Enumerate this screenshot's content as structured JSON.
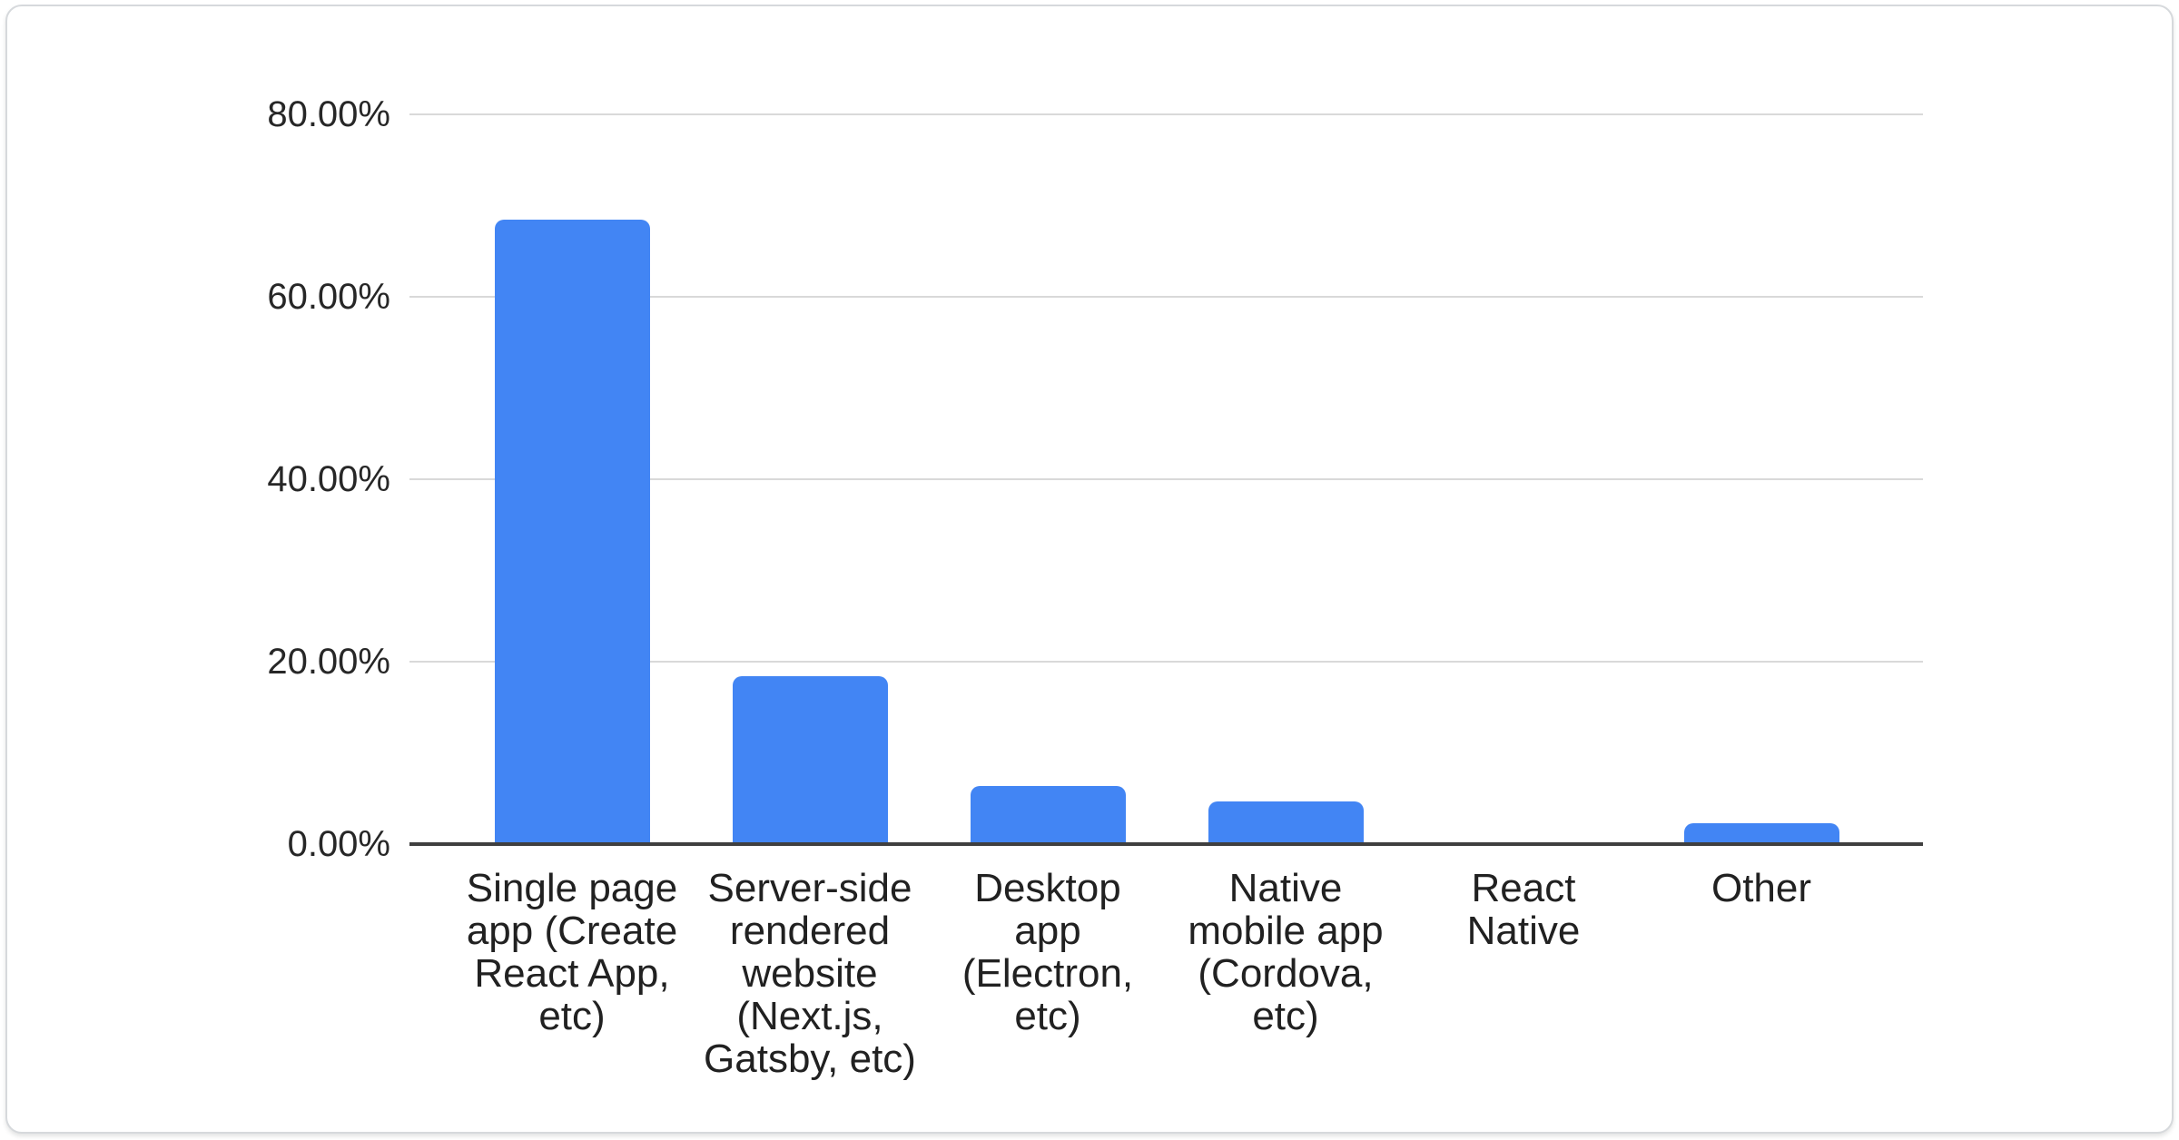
{
  "chart_data": {
    "type": "bar",
    "title": "",
    "xlabel": "",
    "ylabel": "",
    "unit": "%",
    "ylim": [
      0,
      80
    ],
    "grid": true,
    "legend": "none",
    "bar_color": "#4285f4",
    "gridline_color": "#d9d9d9",
    "axis_line_color": "#3f3f3f",
    "text_color": "#272727",
    "card_border_color": "#d6d9dc",
    "yticks": [
      {
        "label": "80.00%",
        "value": 80
      },
      {
        "label": "60.00%",
        "value": 60
      },
      {
        "label": "40.00%",
        "value": 40
      },
      {
        "label": "20.00%",
        "value": 20
      },
      {
        "label": "0.00%",
        "value": 0
      }
    ],
    "categories": [
      {
        "name": "Single page app (Create React App, etc)",
        "display": "Single page\napp (Create\nReact App,\netc)",
        "value": 68.5
      },
      {
        "name": "Server-side rendered website (Next.js, Gatsby, etc)",
        "display": "Server-side\nrendered\nwebsite\n(Next.js,\nGatsby, etc)",
        "value": 18.4
      },
      {
        "name": "Desktop app (Electron, etc)",
        "display": "Desktop\napp\n(Electron,\netc)",
        "value": 6.4
      },
      {
        "name": "Native mobile app (Cordova, etc)",
        "display": "Native\nmobile app\n(Cordova,\netc)",
        "value": 4.7
      },
      {
        "name": "React Native",
        "display": "React\nNative",
        "value": 0
      },
      {
        "name": "Other",
        "display": "Other",
        "value": 2.3
      }
    ]
  }
}
